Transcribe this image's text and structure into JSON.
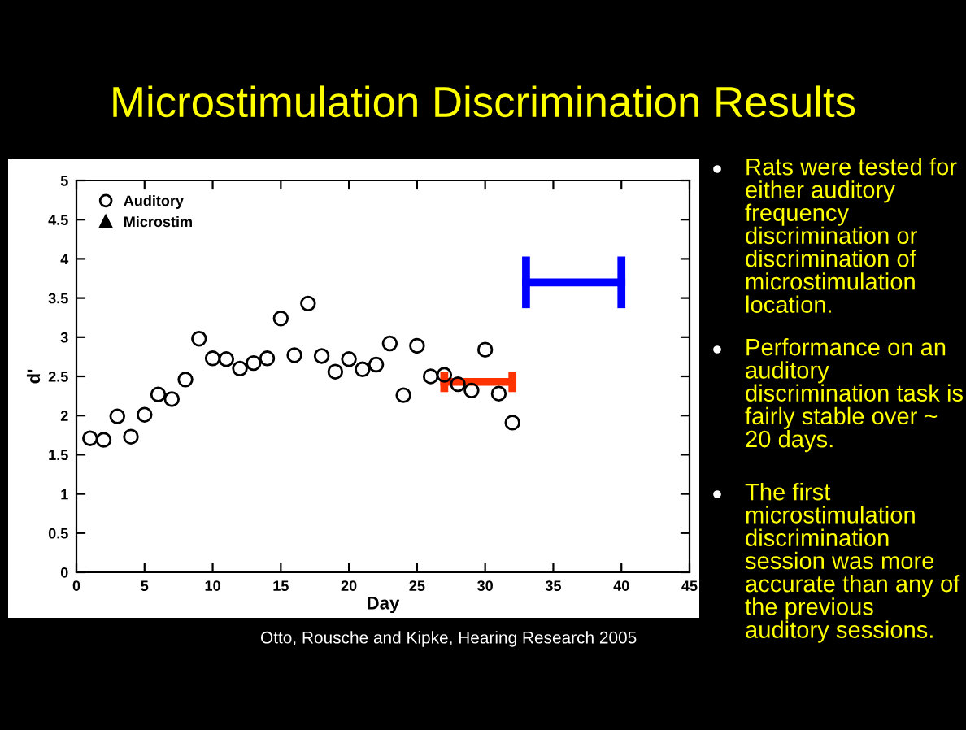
{
  "chart_data": {
    "type": "scatter",
    "title": "Microstimulation Discrimination Results",
    "xlabel": "Day",
    "ylabel": "d'",
    "xlim": [
      0,
      45
    ],
    "xticks": [
      0,
      5,
      10,
      15,
      20,
      25,
      30,
      35,
      40,
      45
    ],
    "ylim": [
      0,
      5
    ],
    "yticks": [
      0,
      0.5,
      1,
      1.5,
      2,
      2.5,
      3,
      3.5,
      4,
      4.5,
      5
    ],
    "grid": false,
    "legend": "top left",
    "series": [
      {
        "name": "Auditory",
        "color": "#000000",
        "marker": "circle",
        "x": [
          1,
          2,
          3,
          4,
          5,
          6,
          7,
          8,
          9,
          10,
          11,
          12,
          13,
          14,
          15,
          16,
          17,
          18,
          19,
          20,
          21,
          22,
          23,
          24,
          25,
          26,
          27,
          28,
          29,
          30,
          31,
          32
        ],
        "values": [
          1.71,
          1.69,
          1.99,
          1.73,
          2.01,
          2.27,
          2.21,
          2.46,
          2.98,
          2.73,
          2.72,
          2.6,
          2.67,
          2.73,
          3.24,
          2.77,
          3.43,
          2.76,
          2.56,
          2.72,
          2.59,
          2.65,
          2.92,
          2.26,
          2.89,
          2.5,
          2.52,
          2.4,
          2.32,
          2.84,
          2.28,
          1.91
        ]
      },
      {
        "name": "Microstim",
        "color": "#000000",
        "marker": "triangle"
      },
      {
        "type": "line",
        "color": "#ff3300",
        "marker": "none",
        "x": [
          27,
          32
        ],
        "values": [
          2.43,
          2.43
        ],
        "errors": [
          0.13,
          0.13
        ]
      },
      {
        "type": "line",
        "color": "#0000ff",
        "marker": "none",
        "x": [
          33,
          40
        ],
        "values": [
          3.7,
          3.7
        ],
        "errors": [
          0.33,
          0.33
        ]
      }
    ],
    "annotations": [
      "Rats were tested for either auditory frequency discrimination or discrimination of microstimulation location.",
      "Performance on an auditory discrimination task is fairly stable over ~ 20 days.",
      "The first microstimulation discrimination session was more accurate than any of the previous auditory sessions.",
      "Otto, Rousche and Kipke, Hearing Research 2005"
    ]
  }
}
